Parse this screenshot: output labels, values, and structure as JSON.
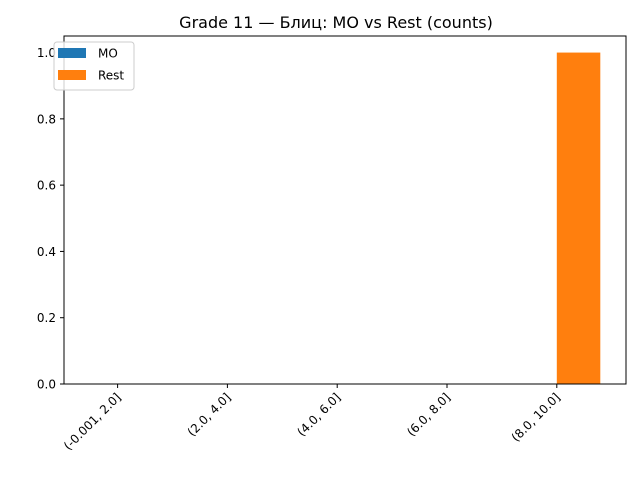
{
  "chart_data": {
    "type": "bar",
    "title": "Grade 11 — Блиц: МО vs Rest (counts)",
    "xlabel": "",
    "ylabel": "",
    "categories": [
      "(-0.001, 2.0]",
      "(2.0, 4.0]",
      "(4.0, 6.0]",
      "(6.0, 8.0]",
      "(8.0, 10.0]"
    ],
    "series": [
      {
        "name": "МО",
        "color": "#1f77b4",
        "values": [
          0,
          0,
          0,
          0,
          0
        ]
      },
      {
        "name": "Rest",
        "color": "#ff7f0e",
        "values": [
          0,
          0,
          0,
          0,
          1
        ]
      }
    ],
    "ylim": [
      0,
      1.05
    ],
    "yticks": [
      0.0,
      0.2,
      0.4,
      0.6,
      0.8,
      1.0
    ],
    "ytick_labels": [
      "0.0",
      "0.2",
      "0.4",
      "0.6",
      "0.8",
      "1.0"
    ],
    "legend_position": "top-left",
    "grid": false
  }
}
